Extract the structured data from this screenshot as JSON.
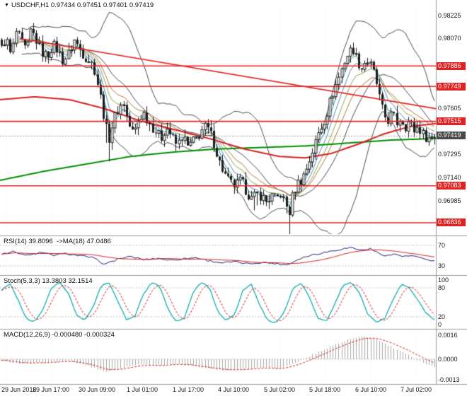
{
  "header": {
    "marker": "▼",
    "title": "USDCHF,H1 0.97434 0.97451 0.97401 0.97419"
  },
  "panels": {
    "rsi_title": "RSI(14) 39.8096  ->MA(18) 47.0486",
    "stoch_title": "Stoch(5,3,3) 13.3803 32.1514",
    "macd_title": "MACD(12,26,9) -0.000480 -0.000324"
  },
  "axis": {
    "price_labels": [
      {
        "text": "0.98225",
        "price": 0.98225
      },
      {
        "text": "0.98070",
        "price": 0.9807
      },
      {
        "text": "0.97605",
        "price": 0.97605
      },
      {
        "text": "0.97295",
        "price": 0.97295
      },
      {
        "text": "0.97140",
        "price": 0.9714
      },
      {
        "text": "0.96985",
        "price": 0.96985
      }
    ],
    "level_badges": [
      {
        "text": "0.97886",
        "price": 0.97886
      },
      {
        "text": "0.97749",
        "price": 0.97749
      },
      {
        "text": "0.97515",
        "price": 0.97515
      },
      {
        "text": "0.97083",
        "price": 0.97083
      },
      {
        "text": "0.96836",
        "price": 0.96836
      }
    ],
    "current_badge": {
      "text": "0.97419",
      "price": 0.97419
    },
    "rsi_labels": [
      {
        "text": "70",
        "value": 70
      },
      {
        "text": "30",
        "value": 30
      }
    ],
    "stoch_labels": [
      {
        "text": "100",
        "value": 100
      },
      {
        "text": "80",
        "value": 80
      },
      {
        "text": "20",
        "value": 20
      },
      {
        "text": "0",
        "value": 0
      }
    ],
    "macd_labels": [
      {
        "text": "0.0016",
        "value": 0.0016
      },
      {
        "text": "0.0000",
        "value": 0
      },
      {
        "text": "-0.0013",
        "value": -0.0013
      }
    ],
    "date_labels": [
      "29 Jun 2016",
      "29 Jun 17:00",
      "30 Jun 09:00",
      "1 Jul 01:00",
      "1 Jul 17:00",
      "4 Jul 10:00",
      "5 Jul 02:00",
      "5 Jul 18:00",
      "6 Jul 10:00",
      "7 Jul 02:00"
    ]
  },
  "colors": {
    "background": "#ffffff",
    "text": "#1a1a1a",
    "grid": "#ececec",
    "separator": "#9a9a9a",
    "candle": "#1c1c1c",
    "candle_bull_fill": "#ffffff",
    "bollinger": "#4a4a58",
    "ma_green": "#008f00",
    "ma_red": "#d62020",
    "fan": [
      "#2f9e9e",
      "#5b84c4",
      "#8aa44e",
      "#b87333"
    ],
    "level_red": "#e22222",
    "badge_red_bg": "#e22222",
    "badge_current_bg": "#4a4a4a",
    "badge_text": "#ffffff",
    "current_price_line": "#999999",
    "rsi_line": "#1c1c78",
    "rsi_ma": "#d62020",
    "stoch_main": "#00a8a8",
    "stoch_signal": "#d62020",
    "macd_hist": "#a8a8a8",
    "macd_signal": "#d62020",
    "guide": "#c4c4c4"
  },
  "chart_data": {
    "type": "candlestick",
    "symbol": "USDCHF",
    "timeframe": "H1",
    "ohlc_display": {
      "open": "0.97434",
      "high": "0.97451",
      "low": "0.97401",
      "close": "0.97419"
    },
    "price_axis_range": [
      0.9676,
      0.9829
    ],
    "bars": 150,
    "x_categories": [
      "29 Jun 2016",
      "29 Jun 17:00",
      "30 Jun 09:00",
      "1 Jul 01:00",
      "1 Jul 17:00",
      "4 Jul 10:00",
      "5 Jul 02:00",
      "5 Jul 18:00",
      "6 Jul 10:00",
      "7 Jul 02:00"
    ],
    "levels": [
      0.97886,
      0.97749,
      0.97515,
      0.97083,
      0.96836
    ],
    "current_price": 0.97419,
    "trendline": {
      "start": [
        0.045,
        0.9807
      ],
      "end": [
        1,
        0.976
      ]
    },
    "bollinger": {
      "period": 20,
      "deviation": 2
    },
    "ema_fan_periods": [
      4,
      7,
      11,
      16
    ],
    "price_keypoints": [
      [
        0,
        0.98
      ],
      [
        0.01,
        0.9808
      ],
      [
        0.022,
        0.9795
      ],
      [
        0.034,
        0.9812
      ],
      [
        0.046,
        0.9804
      ],
      [
        0.058,
        0.9798
      ],
      [
        0.068,
        0.9813
      ],
      [
        0.08,
        0.9806
      ],
      [
        0.092,
        0.9798
      ],
      [
        0.105,
        0.9795
      ],
      [
        0.118,
        0.9803
      ],
      [
        0.13,
        0.9799
      ],
      [
        0.142,
        0.9792
      ],
      [
        0.155,
        0.9797
      ],
      [
        0.168,
        0.9806
      ],
      [
        0.18,
        0.98
      ],
      [
        0.192,
        0.9795
      ],
      [
        0.205,
        0.9792
      ],
      [
        0.215,
        0.9786
      ],
      [
        0.228,
        0.9768
      ],
      [
        0.24,
        0.9748
      ],
      [
        0.248,
        0.974
      ],
      [
        0.258,
        0.9752
      ],
      [
        0.27,
        0.976
      ],
      [
        0.282,
        0.9764
      ],
      [
        0.292,
        0.975
      ],
      [
        0.305,
        0.9743
      ],
      [
        0.318,
        0.9754
      ],
      [
        0.33,
        0.9757
      ],
      [
        0.342,
        0.975
      ],
      [
        0.355,
        0.9745
      ],
      [
        0.368,
        0.974
      ],
      [
        0.38,
        0.9748
      ],
      [
        0.392,
        0.9742
      ],
      [
        0.405,
        0.9735
      ],
      [
        0.418,
        0.9742
      ],
      [
        0.43,
        0.9734
      ],
      [
        0.442,
        0.9738
      ],
      [
        0.455,
        0.9742
      ],
      [
        0.468,
        0.9748
      ],
      [
        0.48,
        0.9745
      ],
      [
        0.49,
        0.9737
      ],
      [
        0.502,
        0.9725
      ],
      [
        0.515,
        0.9716
      ],
      [
        0.528,
        0.971
      ],
      [
        0.54,
        0.9708
      ],
      [
        0.552,
        0.9712
      ],
      [
        0.565,
        0.9705
      ],
      [
        0.578,
        0.9699
      ],
      [
        0.59,
        0.9703
      ],
      [
        0.602,
        0.9701
      ],
      [
        0.612,
        0.9697
      ],
      [
        0.622,
        0.9702
      ],
      [
        0.632,
        0.9699
      ],
      [
        0.645,
        0.9703
      ],
      [
        0.655,
        0.9696
      ],
      [
        0.664,
        0.969
      ],
      [
        0.672,
        0.9702
      ],
      [
        0.682,
        0.971
      ],
      [
        0.692,
        0.9712
      ],
      [
        0.702,
        0.9718
      ],
      [
        0.712,
        0.9726
      ],
      [
        0.722,
        0.9735
      ],
      [
        0.732,
        0.9744
      ],
      [
        0.742,
        0.975
      ],
      [
        0.752,
        0.9758
      ],
      [
        0.762,
        0.9768
      ],
      [
        0.772,
        0.9776
      ],
      [
        0.782,
        0.9784
      ],
      [
        0.792,
        0.9792
      ],
      [
        0.802,
        0.9798
      ],
      [
        0.812,
        0.98
      ],
      [
        0.822,
        0.9792
      ],
      [
        0.832,
        0.9787
      ],
      [
        0.842,
        0.9793
      ],
      [
        0.852,
        0.9789
      ],
      [
        0.862,
        0.9782
      ],
      [
        0.872,
        0.9768
      ],
      [
        0.882,
        0.9756
      ],
      [
        0.892,
        0.9752
      ],
      [
        0.902,
        0.9757
      ],
      [
        0.912,
        0.975
      ],
      [
        0.922,
        0.9754
      ],
      [
        0.932,
        0.9748
      ],
      [
        0.942,
        0.9752
      ],
      [
        0.952,
        0.9745
      ],
      [
        0.962,
        0.9748
      ],
      [
        0.972,
        0.9743
      ],
      [
        0.985,
        0.974
      ],
      [
        1,
        0.9742
      ]
    ],
    "wick_spikes": [
      {
        "t": 0.664,
        "depth": 0.0013
      },
      {
        "t": 0.247,
        "depth": 0.0009
      },
      {
        "t": 0.585,
        "depth": 0.0006
      }
    ],
    "green_ma_keypoints": [
      [
        0,
        0.9712
      ],
      [
        0.1,
        0.9718
      ],
      [
        0.2,
        0.9723
      ],
      [
        0.3,
        0.9728
      ],
      [
        0.4,
        0.9731
      ],
      [
        0.5,
        0.9733
      ],
      [
        0.6,
        0.9734
      ],
      [
        0.7,
        0.9735
      ],
      [
        0.8,
        0.9737
      ],
      [
        0.9,
        0.9739
      ],
      [
        1,
        0.974
      ]
    ],
    "red_ma_keypoints": [
      [
        0,
        0.9766
      ],
      [
        0.08,
        0.9768
      ],
      [
        0.16,
        0.9766
      ],
      [
        0.24,
        0.976
      ],
      [
        0.32,
        0.9752
      ],
      [
        0.4,
        0.9746
      ],
      [
        0.48,
        0.974
      ],
      [
        0.56,
        0.9733
      ],
      [
        0.64,
        0.9728
      ],
      [
        0.7,
        0.9727
      ],
      [
        0.76,
        0.973
      ],
      [
        0.82,
        0.9736
      ],
      [
        0.88,
        0.9743
      ],
      [
        0.94,
        0.9748
      ],
      [
        1,
        0.975
      ]
    ],
    "rsi": {
      "value": 39.8096,
      "ma_value": 47.0486,
      "ma_period": 18,
      "range": [
        15,
        85
      ],
      "guides": [
        70,
        30
      ],
      "keypoints": [
        [
          0,
          54
        ],
        [
          0.03,
          58
        ],
        [
          0.06,
          50
        ],
        [
          0.09,
          56
        ],
        [
          0.12,
          51
        ],
        [
          0.15,
          54
        ],
        [
          0.18,
          50
        ],
        [
          0.21,
          46
        ],
        [
          0.24,
          33
        ],
        [
          0.27,
          44
        ],
        [
          0.3,
          48
        ],
        [
          0.33,
          42
        ],
        [
          0.36,
          45
        ],
        [
          0.39,
          41
        ],
        [
          0.42,
          44
        ],
        [
          0.45,
          46
        ],
        [
          0.48,
          40
        ],
        [
          0.51,
          36
        ],
        [
          0.54,
          38
        ],
        [
          0.57,
          34
        ],
        [
          0.6,
          37
        ],
        [
          0.63,
          35
        ],
        [
          0.66,
          32
        ],
        [
          0.69,
          45
        ],
        [
          0.72,
          52
        ],
        [
          0.75,
          57
        ],
        [
          0.78,
          62
        ],
        [
          0.81,
          66
        ],
        [
          0.83,
          60
        ],
        [
          0.85,
          64
        ],
        [
          0.87,
          55
        ],
        [
          0.89,
          50
        ],
        [
          0.91,
          53
        ],
        [
          0.93,
          48
        ],
        [
          0.95,
          50
        ],
        [
          0.97,
          44
        ],
        [
          1,
          39.8
        ]
      ]
    },
    "stoch": {
      "k": 13.3803,
      "d": 32.1514,
      "range": [
        0,
        100
      ],
      "guides": [
        80,
        20
      ],
      "values": [
        75,
        90,
        55,
        15,
        10,
        35,
        80,
        92,
        70,
        25,
        12,
        40,
        85,
        90,
        50,
        15,
        20,
        65,
        90,
        85,
        35,
        10,
        18,
        70,
        92,
        80,
        30,
        12,
        25,
        75,
        88,
        45,
        12,
        8,
        30,
        78,
        90,
        60,
        18,
        10,
        45,
        85,
        92,
        70,
        25,
        10,
        15,
        55,
        88,
        80,
        55,
        28,
        13
      ]
    },
    "macd": {
      "value": -0.00048,
      "signal": -0.000324,
      "range": [
        -0.00145,
        0.00175
      ],
      "guides": [
        0
      ],
      "keypoints": [
        [
          0,
          -0.0001
        ],
        [
          0.05,
          -0.0003
        ],
        [
          0.1,
          -0.0002
        ],
        [
          0.15,
          -0.0001
        ],
        [
          0.2,
          -0.0004
        ],
        [
          0.24,
          -0.0008
        ],
        [
          0.28,
          -0.0005
        ],
        [
          0.32,
          -0.0003
        ],
        [
          0.36,
          -0.0004
        ],
        [
          0.4,
          -0.0003
        ],
        [
          0.44,
          -0.0004
        ],
        [
          0.48,
          -0.0006
        ],
        [
          0.52,
          -0.0007
        ],
        [
          0.56,
          -0.0006
        ],
        [
          0.6,
          -0.0005
        ],
        [
          0.64,
          -0.0006
        ],
        [
          0.68,
          -0.0002
        ],
        [
          0.72,
          0.0003
        ],
        [
          0.76,
          0.0008
        ],
        [
          0.8,
          0.0012
        ],
        [
          0.83,
          0.0014
        ],
        [
          0.86,
          0.0013
        ],
        [
          0.89,
          0.0009
        ],
        [
          0.92,
          0.0005
        ],
        [
          0.95,
          0.0001
        ],
        [
          0.98,
          -0.0003
        ],
        [
          1,
          -0.00048
        ]
      ]
    }
  }
}
